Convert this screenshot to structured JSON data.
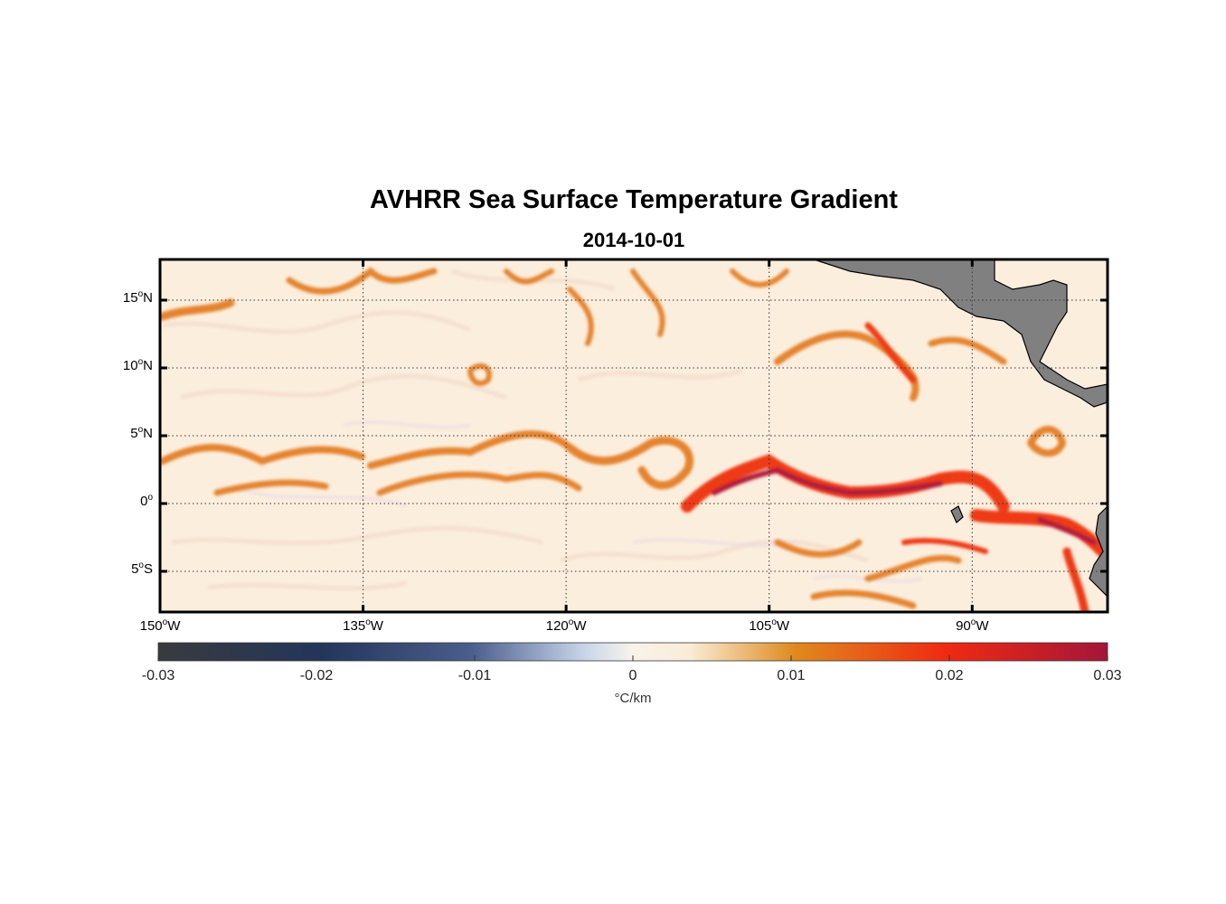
{
  "title": "AVHRR Sea Surface Temperature Gradient",
  "subtitle": "2014-10-01",
  "map": {
    "lon_range": [
      -150,
      -80
    ],
    "lat_range": [
      -8,
      18
    ],
    "latitude_ticks": [
      {
        "value": 15,
        "deg": "15",
        "hemi": "N"
      },
      {
        "value": 10,
        "deg": "10",
        "hemi": "N"
      },
      {
        "value": 5,
        "deg": "5",
        "hemi": "N"
      },
      {
        "value": 0,
        "deg": "0",
        "hemi": ""
      },
      {
        "value": -5,
        "deg": "5",
        "hemi": "S"
      }
    ],
    "longitude_ticks": [
      {
        "value": -150,
        "deg": "150",
        "hemi": "W"
      },
      {
        "value": -135,
        "deg": "135",
        "hemi": "W"
      },
      {
        "value": -120,
        "deg": "120",
        "hemi": "W"
      },
      {
        "value": -105,
        "deg": "105",
        "hemi": "W"
      },
      {
        "value": -90,
        "deg": "90",
        "hemi": "W"
      }
    ],
    "grid": "dotted",
    "land_color": "#808080"
  },
  "colorbar": {
    "ticks": [
      "-0.03",
      "-0.02",
      "-0.01",
      "0",
      "0.01",
      "0.02",
      "0.03"
    ],
    "range": [
      -0.03,
      0.03
    ],
    "unit": "°C/km",
    "colors": [
      "#3a3a3d",
      "#22365a",
      "#4a5e8c",
      "#c9d6ea",
      "#faecd6",
      "#e08a1e",
      "#f02a12",
      "#a3163a"
    ]
  }
}
